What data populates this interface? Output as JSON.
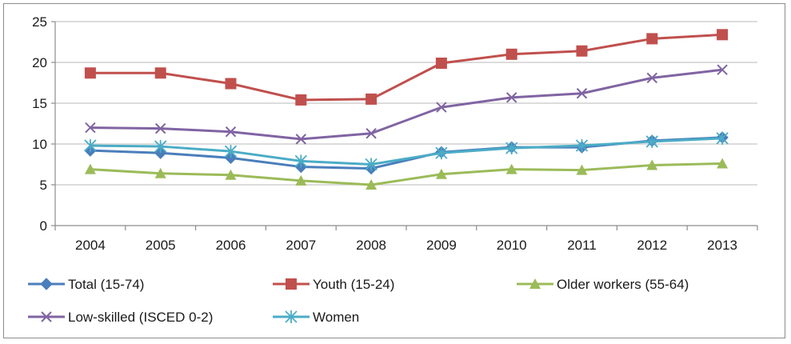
{
  "chart_data": {
    "type": "line",
    "title": "",
    "xlabel": "",
    "ylabel": "",
    "categories": [
      "2004",
      "2005",
      "2006",
      "2007",
      "2008",
      "2009",
      "2010",
      "2011",
      "2012",
      "2013"
    ],
    "ylim": [
      0,
      25
    ],
    "yticks": [
      0,
      5,
      10,
      15,
      20,
      25
    ],
    "grid": "horizontal",
    "legend_position": "bottom",
    "series": [
      {
        "name": "Total (15-74)",
        "color": "#4a7ebb",
        "marker": "diamond",
        "values": [
          9.2,
          8.9,
          8.3,
          7.2,
          7.0,
          9.0,
          9.6,
          9.6,
          10.4,
          10.8
        ]
      },
      {
        "name": "Youth (15-24)",
        "color": "#c0504d",
        "marker": "square",
        "values": [
          18.7,
          18.7,
          17.4,
          15.4,
          15.5,
          19.9,
          21.0,
          21.4,
          22.9,
          23.4
        ]
      },
      {
        "name": "Older workers (55-64)",
        "color": "#9bbb59",
        "marker": "triangle",
        "values": [
          6.9,
          6.4,
          6.2,
          5.5,
          5.0,
          6.3,
          6.9,
          6.8,
          7.4,
          7.6
        ]
      },
      {
        "name": "Low-skilled (ISCED 0-2)",
        "color": "#8064a2",
        "marker": "x",
        "values": [
          12.0,
          11.9,
          11.5,
          10.6,
          11.3,
          14.5,
          15.7,
          16.2,
          18.1,
          19.1
        ]
      },
      {
        "name": "Women",
        "color": "#4bacc6",
        "marker": "star",
        "values": [
          9.8,
          9.7,
          9.1,
          7.9,
          7.5,
          8.9,
          9.5,
          9.8,
          10.3,
          10.7
        ]
      }
    ]
  }
}
